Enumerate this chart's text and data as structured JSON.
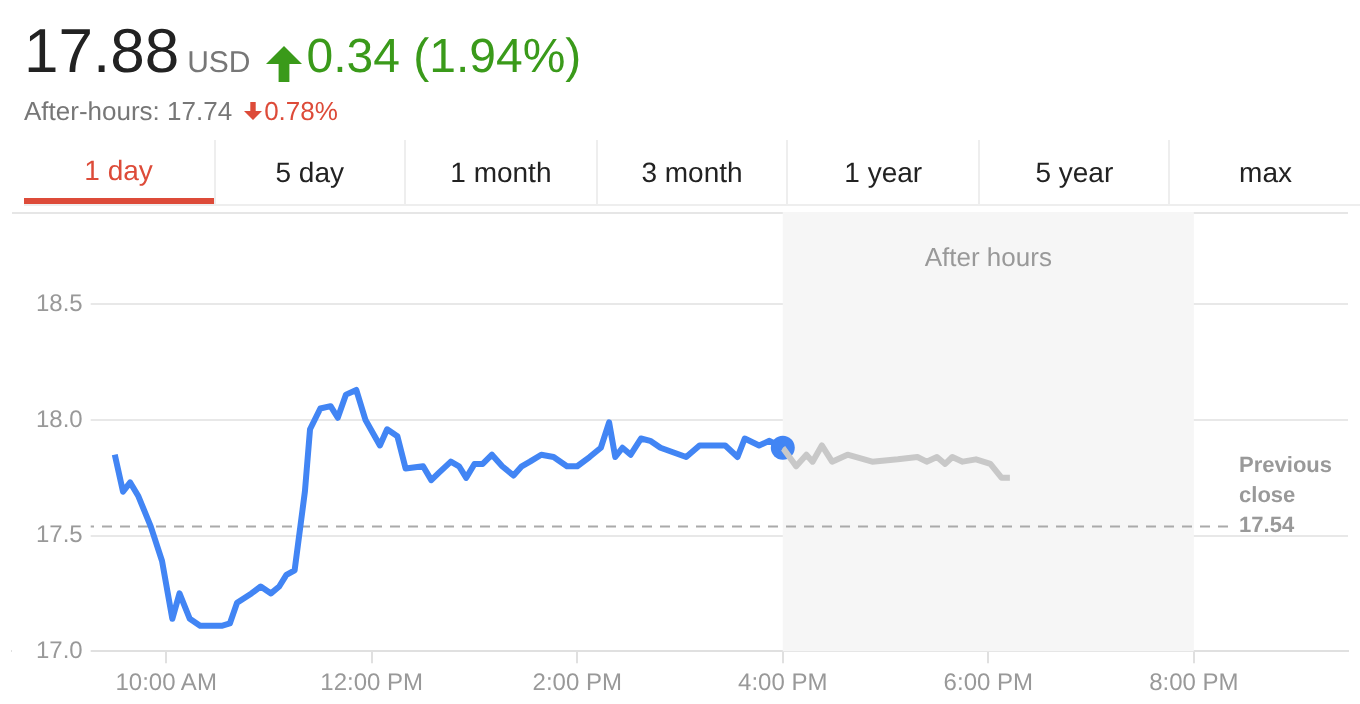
{
  "chart_data": {
    "type": "line",
    "title": "17.88",
    "annotations": [
      "USD",
      "0.34 (1.94%)",
      "After-hours: 17.74",
      "0.78%",
      "1 day",
      "5 day",
      "1 month",
      "3 month",
      "1 year",
      "5 year",
      "max"
    ],
    "xlim": [
      8.5,
      21.5
    ],
    "xticks": [
      {
        "value": 10,
        "label": "10:00 AM"
      },
      {
        "value": 12,
        "label": "12:00 PM"
      },
      {
        "value": 14,
        "label": "2:00 PM"
      },
      {
        "value": 16,
        "label": "4:00 PM"
      },
      {
        "value": 18,
        "label": "6:00 PM"
      },
      {
        "value": 20,
        "label": "8:00 PM"
      }
    ],
    "ylim": [
      17.0,
      18.9
    ],
    "yticks": [
      {
        "value": 17,
        "label": "17.0"
      },
      {
        "value": 17.5,
        "label": "17.5"
      },
      {
        "value": 18,
        "label": "18.0"
      },
      {
        "value": 18.5,
        "label": "18.5"
      }
    ],
    "grid": "y",
    "legend": false,
    "marker": "none",
    "line_style": "solid",
    "ref_lines": [
      {
        "axis": "y",
        "value": 17.54,
        "label": "Previous close 17.54",
        "color": "#aaaaaa",
        "line_style": "dashed"
      }
    ],
    "bands": [
      {
        "axis": "x",
        "from": 16,
        "to": 20,
        "label": "After hours",
        "color": "#f6f6f6"
      }
    ],
    "series": [
      {
        "color": "#4285f4",
        "x": [
          9.5,
          9.58,
          9.65,
          9.73,
          9.85,
          9.96,
          10.06,
          10.13,
          10.23,
          10.33,
          10.54,
          10.62,
          10.69,
          10.83,
          10.92,
          11.02,
          11.1,
          11.17,
          11.25,
          11.35,
          11.4,
          11.5,
          11.6,
          11.67,
          11.75,
          11.85,
          11.94,
          12.08,
          12.15,
          12.25,
          12.33,
          12.5,
          12.58,
          12.65,
          12.77,
          12.85,
          12.92,
          13.0,
          13.08,
          13.17,
          13.27,
          13.38,
          13.46,
          13.54,
          13.65,
          13.77,
          13.9,
          14.0,
          14.12,
          14.23,
          14.31,
          14.37,
          14.44,
          14.52,
          14.62,
          14.71,
          14.81,
          15.06,
          15.19,
          15.44,
          15.56,
          15.63,
          15.77,
          15.87,
          16.0
        ],
        "values": [
          17.85,
          17.69,
          17.73,
          17.67,
          17.54,
          17.39,
          17.14,
          17.25,
          17.14,
          17.11,
          17.11,
          17.12,
          17.21,
          17.25,
          17.28,
          17.25,
          17.28,
          17.33,
          17.35,
          17.69,
          17.96,
          18.05,
          18.06,
          18.01,
          18.11,
          18.13,
          18.0,
          17.89,
          17.96,
          17.93,
          17.79,
          17.8,
          17.74,
          17.77,
          17.82,
          17.8,
          17.75,
          17.81,
          17.81,
          17.85,
          17.8,
          17.76,
          17.8,
          17.82,
          17.85,
          17.84,
          17.8,
          17.8,
          17.84,
          17.88,
          17.99,
          17.84,
          17.88,
          17.85,
          17.92,
          17.91,
          17.88,
          17.84,
          17.89,
          17.89,
          17.84,
          17.92,
          17.89,
          17.91,
          17.88
        ]
      },
      {
        "color": "#c8c8c8",
        "x": [
          16.0,
          16.13,
          16.23,
          16.29,
          16.38,
          16.48,
          16.63,
          16.87,
          17.12,
          17.31,
          17.4,
          17.5,
          17.58,
          17.65,
          17.75,
          17.88,
          18.02,
          18.13,
          18.21
        ],
        "values": [
          17.88,
          17.8,
          17.85,
          17.82,
          17.89,
          17.82,
          17.85,
          17.82,
          17.83,
          17.84,
          17.82,
          17.84,
          17.81,
          17.84,
          17.82,
          17.83,
          17.81,
          17.75,
          17.75
        ]
      },
      {
        "type": "scatter",
        "marker": "circle",
        "color": "#4285f4",
        "x": [
          16.0
        ],
        "values": [
          17.88
        ]
      }
    ]
  }
}
